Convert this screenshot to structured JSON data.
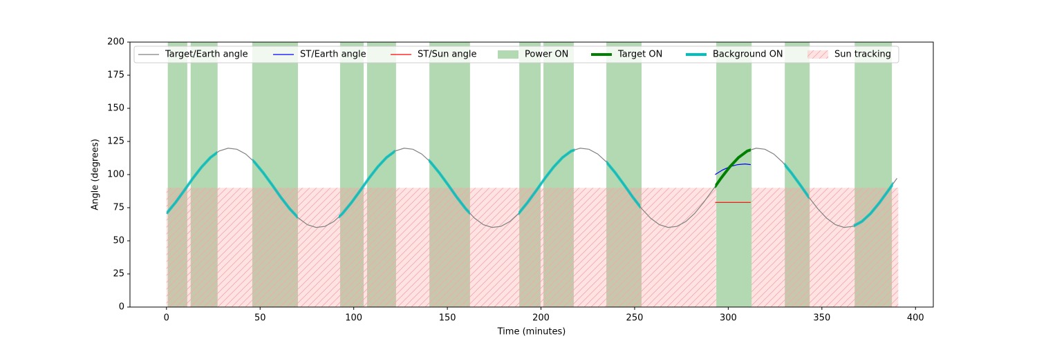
{
  "chart_data": {
    "type": "line",
    "xlabel": "Time (minutes)",
    "ylabel": "Angle (degrees)",
    "xlim": [
      -19.5,
      409.5
    ],
    "ylim": [
      0,
      200
    ],
    "xticks": [
      0,
      50,
      100,
      150,
      200,
      250,
      300,
      350,
      400
    ],
    "yticks": [
      0,
      25,
      50,
      75,
      100,
      125,
      150,
      175,
      200
    ],
    "series": [
      {
        "name": "Target/Earth angle",
        "color": "#808080",
        "x": [
          0,
          4.7,
          9.4,
          14.1,
          18.8,
          23.5,
          28.2,
          32.9,
          37.6,
          42.3,
          47,
          51.7,
          56.4,
          61.1,
          65.8,
          70.5,
          75.2,
          79.9,
          84.6,
          89.3,
          94,
          98.7,
          103.4,
          108.1,
          112.8,
          117.5,
          122.2,
          126.9,
          131.6,
          136.3,
          141,
          145.7,
          150.4,
          155.1,
          159.8,
          164.5,
          169.2,
          173.9,
          178.6,
          183.3,
          188,
          192.7,
          197.4,
          202.1,
          206.8,
          211.5,
          216.2,
          220.9,
          225.6,
          230.3,
          235,
          239.7,
          244.4,
          249.1,
          253.8,
          258.5,
          263.2,
          267.9,
          272.6,
          277.3,
          282,
          286.7,
          291.4,
          296.1,
          300.8,
          305.5,
          310.2,
          314.9,
          319.6,
          324.3,
          329,
          333.7,
          338.4,
          343.1,
          347.8,
          352.5,
          357.2,
          361.9,
          366.6,
          371.3,
          376,
          380.7,
          385.4,
          390.1
        ],
        "values": [
          70.6,
          78.7,
          87.8,
          97.2,
          105.8,
          112.9,
          117.8,
          119.9,
          119.1,
          115.5,
          109.4,
          101.3,
          92.2,
          82.8,
          74.2,
          67.1,
          62.2,
          60.1,
          60.9,
          64.5,
          70.6,
          78.7,
          87.8,
          97.2,
          105.8,
          112.9,
          117.8,
          119.9,
          119.1,
          115.5,
          109.4,
          101.3,
          92.2,
          82.8,
          74.2,
          67.1,
          62.2,
          60.1,
          60.9,
          64.5,
          70.6,
          78.7,
          87.8,
          97.2,
          105.8,
          112.9,
          117.8,
          119.9,
          119.1,
          115.5,
          109.4,
          101.3,
          92.2,
          82.8,
          74.2,
          67.1,
          62.2,
          60.1,
          60.9,
          64.5,
          70.6,
          78.7,
          87.8,
          97.2,
          105.8,
          112.9,
          117.8,
          119.9,
          119.1,
          115.5,
          109.4,
          101.3,
          92.2,
          82.8,
          74.2,
          67.1,
          62.2,
          60.1,
          60.9,
          64.5,
          70.6,
          78.7,
          87.8,
          97.2
        ]
      },
      {
        "name": "ST/Earth angle",
        "color": "#0000ff",
        "x": [
          293,
          297,
          301,
          305,
          309,
          312
        ],
        "values": [
          100,
          103.5,
          106,
          107.5,
          108,
          107.5
        ]
      },
      {
        "name": "ST/Sun angle",
        "color": "#ff0000",
        "x": [
          293,
          312
        ],
        "values": [
          79,
          79
        ]
      }
    ],
    "bands": [
      {
        "name": "Power ON",
        "color": "#008000",
        "intervals": [
          [
            0.7,
            11.1
          ],
          [
            12.9,
            27.3
          ],
          [
            45.8,
            70.2
          ],
          [
            92.7,
            105.3
          ],
          [
            107.1,
            122.6
          ],
          [
            140.4,
            162.1
          ],
          [
            188.4,
            199.8
          ],
          [
            201.3,
            217.5
          ],
          [
            234.9,
            253.7
          ],
          [
            293.6,
            312.5
          ],
          [
            330.2,
            343.5
          ],
          [
            367.5,
            387.4
          ]
        ]
      },
      {
        "name": "Sun tracking",
        "color": "#ff9999",
        "hatch": true,
        "y": [
          0,
          90
        ],
        "intervals": [
          [
            0,
            293.5
          ],
          [
            312.5,
            390.8
          ]
        ]
      }
    ],
    "highlights": [
      {
        "name": "Target ON",
        "color": "#008000",
        "intervals": [
          [
            293,
            312
          ]
        ]
      },
      {
        "name": "Background ON",
        "color": "#00bfbf",
        "intervals": [
          [
            0,
            27
          ],
          [
            46,
            70
          ],
          [
            92,
            122
          ],
          [
            140,
            162
          ],
          [
            188,
            218
          ],
          [
            235,
            253
          ],
          [
            330,
            343
          ],
          [
            367,
            388
          ]
        ]
      }
    ]
  }
}
